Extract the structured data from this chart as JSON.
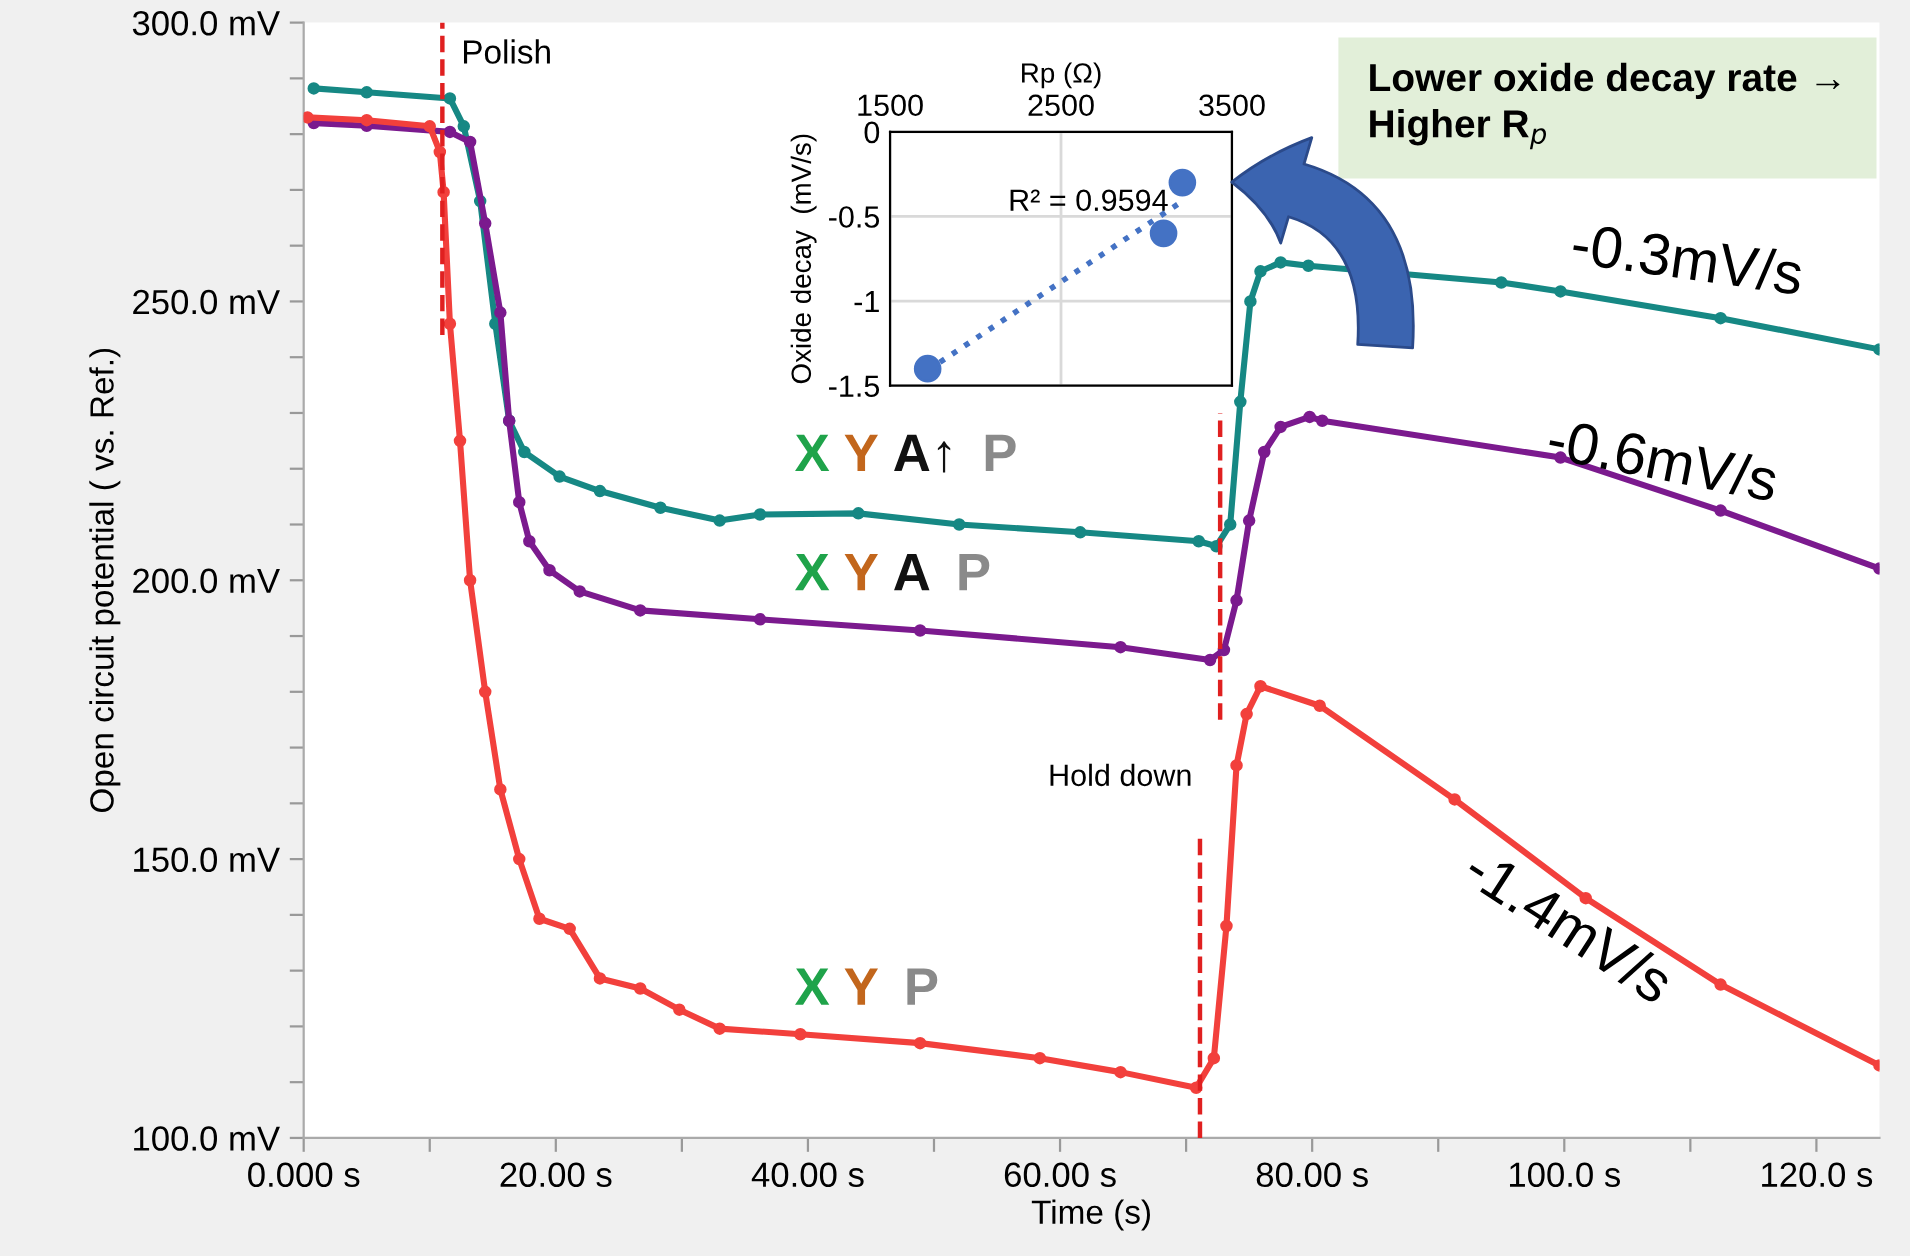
{
  "chart_data": [
    {
      "type": "line",
      "xlabel": "Time (s)",
      "ylabel": "Open circuit potential ( vs. Ref.)",
      "xlim": [
        0,
        125
      ],
      "ylim": [
        100,
        300
      ],
      "xticks": [
        {
          "value": 0,
          "label": "0.000 s"
        },
        {
          "value": 10,
          "label": null
        },
        {
          "value": 20,
          "label": "20.00 s"
        },
        {
          "value": 30,
          "label": null
        },
        {
          "value": 40,
          "label": "40.00 s"
        },
        {
          "value": 50,
          "label": null
        },
        {
          "value": 60,
          "label": "60.00 s"
        },
        {
          "value": 70,
          "label": null
        },
        {
          "value": 80,
          "label": "80.00 s"
        },
        {
          "value": 90,
          "label": null
        },
        {
          "value": 100,
          "label": "100.0 s"
        },
        {
          "value": 110,
          "label": null
        },
        {
          "value": 120,
          "label": "120.0 s"
        }
      ],
      "yticks": [
        {
          "value": 100,
          "label": "100.0 mV"
        },
        {
          "value": 110,
          "label": null
        },
        {
          "value": 120,
          "label": null
        },
        {
          "value": 130,
          "label": null
        },
        {
          "value": 140,
          "label": null
        },
        {
          "value": 150,
          "label": "150.0 mV"
        },
        {
          "value": 160,
          "label": null
        },
        {
          "value": 170,
          "label": null
        },
        {
          "value": 180,
          "label": null
        },
        {
          "value": 190,
          "label": null
        },
        {
          "value": 200,
          "label": "200.0 mV"
        },
        {
          "value": 210,
          "label": null
        },
        {
          "value": 220,
          "label": null
        },
        {
          "value": 230,
          "label": null
        },
        {
          "value": 240,
          "label": null
        },
        {
          "value": 250,
          "label": "250.0 mV"
        },
        {
          "value": 260,
          "label": null
        },
        {
          "value": 270,
          "label": null
        },
        {
          "value": 280,
          "label": null
        },
        {
          "value": 290,
          "label": null
        },
        {
          "value": 300,
          "label": "300.0 mV"
        }
      ],
      "marker": "circle",
      "line_style": "solid",
      "series": [
        {
          "color": "#168884",
          "x": [
            0.8,
            5,
            11.6,
            12.7,
            14,
            15.2,
            16.3,
            17.5,
            20.3,
            23.5,
            28.3,
            33,
            36.2,
            44,
            52,
            61.6,
            71,
            72.4,
            73.5,
            74.3,
            75.1,
            75.9,
            77.5,
            79.7,
            95,
            99.7,
            112.4,
            125
          ],
          "values": [
            288.2,
            287.5,
            286.4,
            281.4,
            268,
            246,
            228.6,
            223,
            218.6,
            216,
            213,
            210.7,
            211.8,
            212,
            210,
            208.6,
            207,
            206.1,
            210,
            232,
            250,
            255.4,
            257,
            256.4,
            253.4,
            251.8,
            247,
            241.4
          ]
        },
        {
          "color": "#7b1a8e",
          "x": [
            0.8,
            5,
            11.6,
            13.2,
            14.4,
            15.6,
            16.3,
            17.1,
            17.9,
            19.5,
            21.9,
            26.7,
            36.2,
            48.9,
            64.8,
            71.9,
            73,
            74,
            75,
            76.2,
            77.5,
            79.8,
            80.8,
            99.7,
            112.4,
            125
          ],
          "values": [
            282,
            281.5,
            280.4,
            278.6,
            264,
            248,
            228.6,
            214,
            207,
            201.8,
            198,
            194.6,
            193,
            191,
            188,
            185.7,
            187.5,
            196.4,
            210.7,
            223,
            227.5,
            229.3,
            228.6,
            222,
            212.5,
            202.1
          ]
        },
        {
          "color": "#f2403c",
          "x": [
            0.3,
            5,
            10,
            10.8,
            11.1,
            11.6,
            12.4,
            13.2,
            14.4,
            15.6,
            17.1,
            18.7,
            21.1,
            23.5,
            26.7,
            29.8,
            33,
            39.4,
            48.9,
            58.4,
            64.8,
            70.8,
            72.2,
            73.2,
            74,
            74.8,
            75.9,
            80.6,
            91.3,
            101.7,
            112.4,
            125
          ],
          "values": [
            283,
            282.5,
            281.4,
            276.8,
            269.6,
            246,
            225,
            200,
            180,
            162.5,
            150,
            139.3,
            137.5,
            128.6,
            126.8,
            123,
            119.6,
            118.6,
            117,
            114.3,
            111.8,
            109,
            114.3,
            138,
            166.8,
            176,
            181,
            177.5,
            160.7,
            143,
            127.5,
            113
          ]
        }
      ],
      "ref_lines": [
        {
          "axis": "x",
          "value": 11,
          "label": "Polish",
          "color": "#e02020",
          "line_style": "dashed"
        },
        {
          "axis": "x",
          "value": 71.1,
          "label": "Hold down",
          "color": "#e02020",
          "line_style": "dashed"
        },
        {
          "axis": "x",
          "value": 72.7,
          "color": "#e02020",
          "line_style": "dashed"
        }
      ],
      "annotations": [
        "-0.3mV/s",
        "-0.6mV/s",
        "-1.4mV/s",
        "X Y A↑ P",
        "X Y A P",
        "X Y P",
        "Lower oxide decay rate → Higher R$_{p}$"
      ]
    },
    {
      "type": "scatter",
      "xlabel": "Rp (Ω)",
      "ylabel": "Oxide decay  (mV/s)",
      "xlim": [
        1500,
        3500
      ],
      "xticks": [
        1500,
        2500,
        3500
      ],
      "ylim": [
        -1.5,
        0
      ],
      "yticks": [
        {
          "value": 0,
          "label": "0"
        },
        {
          "value": -0.5,
          "label": "-0.5"
        },
        {
          "value": -1,
          "label": "-1"
        },
        {
          "value": -1.5,
          "label": "-1.5"
        }
      ],
      "grid": true,
      "series": [
        {
          "type": "scatter",
          "color": "#4472c4",
          "marker": "circle",
          "x": [
            1720,
            3100,
            3210
          ],
          "values": [
            -1.4,
            -0.6,
            -0.3
          ]
        },
        {
          "type": "line",
          "color": "#4472c4",
          "line_style": "dotted",
          "marker": "none",
          "x": [
            1720,
            3210
          ],
          "values": [
            -1.41,
            -0.41
          ]
        }
      ],
      "annotations": [
        "R² = 0.9594"
      ]
    }
  ]
}
